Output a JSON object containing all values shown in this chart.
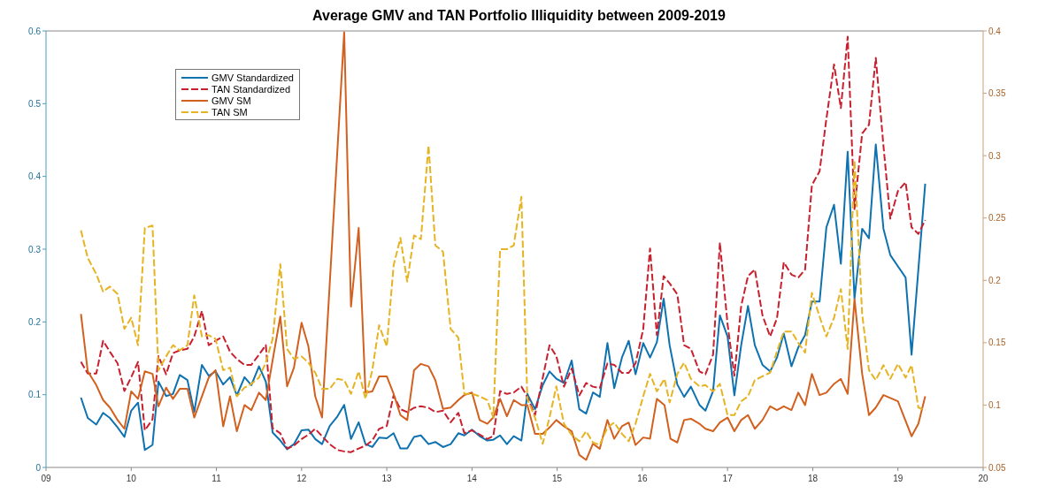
{
  "chart_data": {
    "type": "line",
    "title": "Average GMV and TAN Portfolio Illiquidity between 2009-2019",
    "legend": "top left",
    "xlim": [
      9,
      20
    ],
    "xticks": [
      {
        "value": 9,
        "label": "09"
      },
      10,
      11,
      12,
      13,
      14,
      15,
      16,
      17,
      18,
      19,
      20
    ],
    "ylim": [
      0,
      0.6
    ],
    "yticks": [
      0,
      0.1,
      0.2,
      0.3,
      0.4,
      0.5,
      0.6
    ],
    "y2lim": [
      0.05,
      0.4
    ],
    "y2ticks": [
      0.05,
      0.1,
      0.15,
      0.2,
      0.25,
      0.3,
      0.35,
      0.4
    ],
    "series": [
      {
        "name": "GMV Standardized",
        "color": "#0e72b0",
        "line_style": "solid",
        "x": [
          9.41,
          9.49,
          9.59,
          9.67,
          9.75,
          9.84,
          9.92,
          10.0,
          10.08,
          10.16,
          10.25,
          10.32,
          10.41,
          10.49,
          10.57,
          10.66,
          10.74,
          10.83,
          10.91,
          10.99,
          11.08,
          11.16,
          11.24,
          11.33,
          11.41,
          11.5,
          11.58,
          11.66,
          11.75,
          11.83,
          11.91,
          12.0,
          12.08,
          12.16,
          12.24,
          12.33,
          12.42,
          12.5,
          12.58,
          12.67,
          12.75,
          12.83,
          12.91,
          13.0,
          13.08,
          13.16,
          13.24,
          13.32,
          13.4,
          13.49,
          13.57,
          13.66,
          13.75,
          13.84,
          13.91,
          14.0,
          14.09,
          14.18,
          14.25,
          14.33,
          14.41,
          14.49,
          14.58,
          14.65,
          14.74,
          14.83,
          14.91,
          14.99,
          15.08,
          15.17,
          15.26,
          15.34,
          15.42,
          15.5,
          15.59,
          15.67,
          15.76,
          15.84,
          15.92,
          16.01,
          16.09,
          16.17,
          16.25,
          16.32,
          16.41,
          16.49,
          16.57,
          16.67,
          16.74,
          16.83,
          16.91,
          17.0,
          17.08,
          17.16,
          17.24,
          17.32,
          17.41,
          17.5,
          17.58,
          17.66,
          17.75,
          17.83,
          17.91,
          17.99,
          18.08,
          18.16,
          18.25,
          18.33,
          18.41,
          18.49,
          18.58,
          18.66,
          18.74,
          18.83,
          18.91,
          19.09,
          19.16,
          19.32
        ],
        "values": [
          0.096,
          0.068,
          0.059,
          0.075,
          0.068,
          0.055,
          0.042,
          0.078,
          0.089,
          0.024,
          0.031,
          0.118,
          0.098,
          0.101,
          0.127,
          0.12,
          0.076,
          0.141,
          0.126,
          0.132,
          0.114,
          0.124,
          0.099,
          0.124,
          0.113,
          0.139,
          0.118,
          0.048,
          0.037,
          0.025,
          0.032,
          0.051,
          0.052,
          0.039,
          0.032,
          0.057,
          0.07,
          0.086,
          0.039,
          0.062,
          0.032,
          0.028,
          0.041,
          0.04,
          0.047,
          0.026,
          0.026,
          0.042,
          0.044,
          0.032,
          0.035,
          0.028,
          0.032,
          0.047,
          0.044,
          0.052,
          0.043,
          0.037,
          0.038,
          0.044,
          0.032,
          0.043,
          0.037,
          0.101,
          0.08,
          0.113,
          0.132,
          0.122,
          0.116,
          0.147,
          0.08,
          0.074,
          0.103,
          0.097,
          0.171,
          0.109,
          0.151,
          0.174,
          0.128,
          0.171,
          0.151,
          0.172,
          0.232,
          0.168,
          0.114,
          0.097,
          0.111,
          0.086,
          0.078,
          0.105,
          0.209,
          0.18,
          0.099,
          0.168,
          0.222,
          0.168,
          0.141,
          0.132,
          0.151,
          0.184,
          0.139,
          0.165,
          0.182,
          0.228,
          0.228,
          0.33,
          0.361,
          0.28,
          0.434,
          0.232,
          0.328,
          0.315,
          0.444,
          0.328,
          0.292,
          0.261,
          0.155,
          0.39
        ]
      },
      {
        "name": "TAN Standardized",
        "color": "#c8202e",
        "line_style": "dashed",
        "x": [
          9.41,
          9.49,
          9.59,
          9.67,
          9.75,
          9.84,
          9.92,
          10.0,
          10.08,
          10.16,
          10.25,
          10.32,
          10.41,
          10.49,
          10.57,
          10.66,
          10.74,
          10.83,
          10.91,
          10.99,
          11.08,
          11.16,
          11.24,
          11.33,
          11.41,
          11.5,
          11.58,
          11.66,
          11.75,
          11.83,
          11.91,
          12.0,
          12.08,
          12.16,
          12.24,
          12.33,
          12.42,
          12.5,
          12.58,
          12.67,
          12.75,
          12.83,
          12.91,
          13.0,
          13.08,
          13.16,
          13.24,
          13.32,
          13.4,
          13.49,
          13.57,
          13.66,
          13.75,
          13.84,
          13.91,
          14.0,
          14.09,
          14.18,
          14.25,
          14.33,
          14.41,
          14.49,
          14.58,
          14.65,
          14.74,
          14.91,
          14.99,
          15.08,
          15.17,
          15.26,
          15.34,
          15.42,
          15.5,
          15.59,
          15.67,
          15.76,
          15.84,
          15.92,
          16.01,
          16.09,
          16.17,
          16.25,
          16.32,
          16.41,
          16.49,
          16.57,
          16.67,
          16.74,
          16.83,
          16.91,
          17.0,
          17.08,
          17.16,
          17.24,
          17.32,
          17.41,
          17.5,
          17.58,
          17.66,
          17.75,
          17.83,
          17.91,
          17.99,
          18.08,
          18.16,
          18.25,
          18.33,
          18.41,
          18.49,
          18.58,
          18.66,
          18.74,
          18.83,
          18.91,
          19.0,
          19.09,
          19.16,
          19.24,
          19.32
        ],
        "values": [
          0.145,
          0.129,
          0.129,
          0.174,
          0.159,
          0.143,
          0.105,
          0.124,
          0.145,
          0.051,
          0.066,
          0.153,
          0.128,
          0.157,
          0.161,
          0.163,
          0.18,
          0.215,
          0.168,
          0.174,
          0.18,
          0.159,
          0.149,
          0.141,
          0.141,
          0.155,
          0.168,
          0.054,
          0.047,
          0.026,
          0.03,
          0.039,
          0.045,
          0.053,
          0.043,
          0.032,
          0.024,
          0.022,
          0.021,
          0.026,
          0.03,
          0.037,
          0.053,
          0.057,
          0.099,
          0.08,
          0.076,
          0.082,
          0.084,
          0.082,
          0.076,
          0.078,
          0.062,
          0.075,
          0.047,
          0.051,
          0.045,
          0.039,
          0.043,
          0.105,
          0.101,
          0.103,
          0.111,
          0.097,
          0.072,
          0.168,
          0.153,
          0.111,
          0.136,
          0.099,
          0.116,
          0.111,
          0.109,
          0.143,
          0.141,
          0.13,
          0.13,
          0.143,
          0.19,
          0.301,
          0.182,
          0.263,
          0.253,
          0.238,
          0.168,
          0.163,
          0.132,
          0.128,
          0.155,
          0.309,
          0.197,
          0.126,
          0.222,
          0.263,
          0.272,
          0.209,
          0.18,
          0.205,
          0.282,
          0.265,
          0.261,
          0.272,
          0.388,
          0.407,
          0.479,
          0.554,
          0.494,
          0.592,
          0.355,
          0.459,
          0.471,
          0.563,
          0.442,
          0.342,
          0.38,
          0.392,
          0.33,
          0.321,
          0.34
        ]
      },
      {
        "name": "GMV SM",
        "color": "#d2601e",
        "line_style": "solid",
        "axis": "y2",
        "x": [
          9.41,
          9.49,
          9.59,
          9.67,
          9.75,
          9.84,
          9.92,
          10.0,
          10.08,
          10.16,
          10.25,
          10.32,
          10.41,
          10.49,
          10.57,
          10.66,
          10.74,
          10.83,
          10.91,
          10.99,
          11.08,
          11.16,
          11.24,
          11.33,
          11.41,
          11.5,
          11.58,
          11.66,
          11.75,
          11.83,
          11.91,
          12.0,
          12.08,
          12.16,
          12.24,
          12.5,
          12.58,
          12.67,
          12.75,
          12.83,
          12.91,
          13.0,
          13.08,
          13.16,
          13.24,
          13.32,
          13.4,
          13.49,
          13.57,
          13.66,
          13.75,
          13.84,
          13.91,
          14.0,
          14.09,
          14.18,
          14.25,
          14.33,
          14.41,
          14.49,
          14.58,
          14.65,
          14.74,
          14.83,
          14.91,
          14.99,
          15.08,
          15.17,
          15.26,
          15.34,
          15.42,
          15.5,
          15.59,
          15.67,
          15.76,
          15.84,
          15.92,
          16.01,
          16.09,
          16.17,
          16.26,
          16.33,
          16.41,
          16.49,
          16.57,
          16.67,
          16.74,
          16.83,
          16.91,
          17.0,
          17.08,
          17.16,
          17.24,
          17.32,
          17.41,
          17.5,
          17.58,
          17.66,
          17.75,
          17.83,
          17.91,
          17.99,
          18.08,
          18.16,
          18.25,
          18.33,
          18.41,
          18.49,
          18.58,
          18.66,
          18.74,
          18.83,
          19.0,
          19.16,
          19.24,
          19.32
        ],
        "values": [
          0.173,
          0.127,
          0.116,
          0.104,
          0.098,
          0.088,
          0.081,
          0.111,
          0.105,
          0.127,
          0.125,
          0.099,
          0.114,
          0.105,
          0.113,
          0.113,
          0.09,
          0.107,
          0.122,
          0.128,
          0.083,
          0.107,
          0.079,
          0.1,
          0.096,
          0.11,
          0.104,
          0.136,
          0.171,
          0.115,
          0.13,
          0.166,
          0.147,
          0.107,
          0.09,
          0.399,
          0.179,
          0.242,
          0.11,
          0.111,
          0.123,
          0.123,
          0.109,
          0.092,
          0.088,
          0.128,
          0.133,
          0.131,
          0.12,
          0.097,
          0.098,
          0.104,
          0.108,
          0.11,
          0.088,
          0.085,
          0.09,
          0.105,
          0.091,
          0.104,
          0.1,
          0.1,
          0.077,
          0.077,
          0.082,
          0.088,
          0.083,
          0.079,
          0.06,
          0.056,
          0.069,
          0.065,
          0.088,
          0.073,
          0.083,
          0.086,
          0.068,
          0.074,
          0.073,
          0.105,
          0.1,
          0.073,
          0.07,
          0.088,
          0.089,
          0.085,
          0.081,
          0.079,
          0.086,
          0.09,
          0.079,
          0.088,
          0.092,
          0.081,
          0.088,
          0.099,
          0.096,
          0.099,
          0.096,
          0.11,
          0.1,
          0.125,
          0.108,
          0.11,
          0.117,
          0.121,
          0.109,
          0.185,
          0.125,
          0.092,
          0.098,
          0.108,
          0.103,
          0.075,
          0.085,
          0.107
        ]
      },
      {
        "name": "TAN SM",
        "color": "#e6b422",
        "line_style": "dashed",
        "axis": "y2",
        "x": [
          9.41,
          9.49,
          9.59,
          9.67,
          9.75,
          9.84,
          9.92,
          10.0,
          10.08,
          10.16,
          10.25,
          10.32,
          10.41,
          10.49,
          10.57,
          10.66,
          10.74,
          10.83,
          10.91,
          10.99,
          11.08,
          11.16,
          11.24,
          11.33,
          11.41,
          11.5,
          11.58,
          11.66,
          11.75,
          11.83,
          11.91,
          12.0,
          12.08,
          12.16,
          12.24,
          12.33,
          12.42,
          12.5,
          12.58,
          12.67,
          12.75,
          12.83,
          12.91,
          13.0,
          13.08,
          13.16,
          13.24,
          13.32,
          13.4,
          13.49,
          13.57,
          13.66,
          13.75,
          13.84,
          13.91,
          14.0,
          14.09,
          14.18,
          14.25,
          14.33,
          14.41,
          14.49,
          14.58,
          14.65,
          14.74,
          14.83,
          14.91,
          14.99,
          15.08,
          15.17,
          15.26,
          15.34,
          15.42,
          15.5,
          15.59,
          15.67,
          15.76,
          15.84,
          15.92,
          16.01,
          16.09,
          16.17,
          16.26,
          16.32,
          16.41,
          16.49,
          16.57,
          16.67,
          16.74,
          16.83,
          16.91,
          17.0,
          17.08,
          17.16,
          17.24,
          17.32,
          17.41,
          17.5,
          17.58,
          17.66,
          17.75,
          17.83,
          17.91,
          17.99,
          18.08,
          18.16,
          18.25,
          18.33,
          18.41,
          18.49,
          18.58,
          18.66,
          18.74,
          18.83,
          18.91,
          19.0,
          19.09,
          19.16,
          19.24,
          19.32
        ],
        "values": [
          0.24,
          0.218,
          0.205,
          0.191,
          0.195,
          0.189,
          0.161,
          0.17,
          0.148,
          0.242,
          0.244,
          0.128,
          0.139,
          0.148,
          0.144,
          0.148,
          0.188,
          0.155,
          0.156,
          0.153,
          0.128,
          0.13,
          0.107,
          0.114,
          0.117,
          0.122,
          0.134,
          0.153,
          0.213,
          0.145,
          0.137,
          0.139,
          0.134,
          0.126,
          0.113,
          0.113,
          0.121,
          0.12,
          0.109,
          0.127,
          0.105,
          0.128,
          0.164,
          0.147,
          0.212,
          0.234,
          0.199,
          0.236,
          0.233,
          0.308,
          0.228,
          0.223,
          0.161,
          0.154,
          0.109,
          0.109,
          0.107,
          0.104,
          0.09,
          0.225,
          0.225,
          0.228,
          0.267,
          0.105,
          0.09,
          0.069,
          0.09,
          0.115,
          0.085,
          0.076,
          0.071,
          0.079,
          0.07,
          0.068,
          0.082,
          0.086,
          0.077,
          0.071,
          0.085,
          0.107,
          0.125,
          0.111,
          0.121,
          0.102,
          0.125,
          0.134,
          0.121,
          0.115,
          0.116,
          0.111,
          0.117,
          0.092,
          0.092,
          0.103,
          0.107,
          0.12,
          0.123,
          0.126,
          0.143,
          0.159,
          0.159,
          0.15,
          0.142,
          0.19,
          0.171,
          0.155,
          0.17,
          0.193,
          0.145,
          0.296,
          0.173,
          0.128,
          0.12,
          0.132,
          0.121,
          0.133,
          0.122,
          0.132,
          0.098,
          0.096
        ]
      }
    ]
  }
}
